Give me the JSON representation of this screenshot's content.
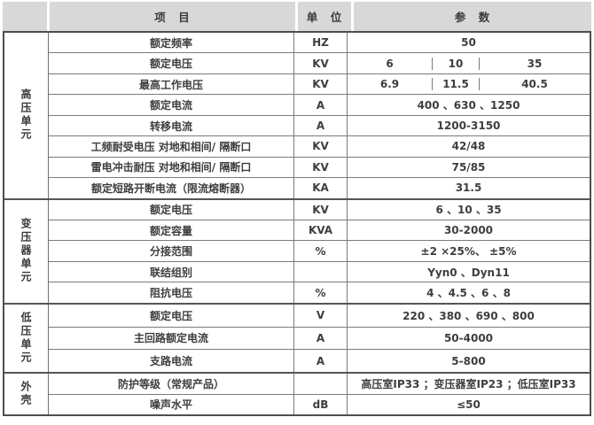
{
  "table": {
    "headers": {
      "group": "",
      "item": "项　目",
      "unit": "单　位",
      "param": "参　数"
    },
    "groups": [
      {
        "label": "高压单元",
        "rows": [
          {
            "item": "额定频率",
            "unit": "HZ",
            "param": "50"
          },
          {
            "item": "额定电压",
            "unit": "KV",
            "cells": [
              "6",
              "10",
              "35"
            ]
          },
          {
            "item": "最高工作电压",
            "unit": "KV",
            "cells": [
              "6.9",
              "11.5",
              "40.5"
            ]
          },
          {
            "item": "额定电流",
            "unit": "A",
            "param": "400 、630 、1250"
          },
          {
            "item": "转移电流",
            "unit": "A",
            "param": "1200-3150"
          },
          {
            "item": "工频耐受电压  对地和相间/ 隔断口",
            "unit": "KV",
            "param": "42/48"
          },
          {
            "item": "雷电冲击耐压  对地和相间/ 隔断口",
            "unit": "KV",
            "param": "75/85"
          },
          {
            "item": "额定短路开断电流（限流熔断器）",
            "unit": "KA",
            "param": "31.5"
          }
        ]
      },
      {
        "label": "变压器单元",
        "rows": [
          {
            "item": "额定电压",
            "unit": "KV",
            "param": "6 、10 、35"
          },
          {
            "item": "额定容量",
            "unit": "KVA",
            "param": "30-2000"
          },
          {
            "item": "分接范围",
            "unit": "%",
            "param": "±2 ×25%、 ±5%"
          },
          {
            "item": "联结组别",
            "unit": "",
            "param": "Yyn0 、Dyn11"
          },
          {
            "item": "阻抗电压",
            "unit": "%",
            "param": "4 、4.5 、6 、8"
          }
        ]
      },
      {
        "label": "低压单元",
        "rows": [
          {
            "item": "额定电压",
            "unit": "V",
            "param": "220 、380 、690 、800"
          },
          {
            "item": "主回路额定电流",
            "unit": "A",
            "param": "50-4000"
          },
          {
            "item": "支路电流",
            "unit": "A",
            "param": "5-800"
          }
        ]
      },
      {
        "label": "外壳",
        "rows": [
          {
            "item": "防护等级（常规产品）",
            "unit": "",
            "param": "高压室IP33 ；变压器室IP23 ；低压室IP33"
          },
          {
            "item": "噪声水平",
            "unit": "dB",
            "param": "≤50"
          }
        ]
      }
    ],
    "colors": {
      "header_bg": "#d8d8d8",
      "inner_border": "#7b7b7b",
      "outer_border": "#4e4e4e",
      "text": "#3e3e3e"
    }
  }
}
